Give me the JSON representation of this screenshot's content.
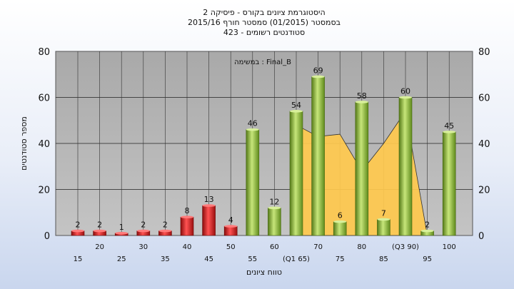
{
  "chart_data": {
    "type": "bar",
    "title_lines": [
      "היסטוגרמת ציונים בקורס - פיסיקה 2",
      "בסמסטר  (01/2015)  סמסטר חורף  2015/16",
      "סטודנטים רשומים - 423"
    ],
    "xlabel": "טווח ציונים",
    "ylabel": "מספר סטודנטים",
    "legend": "במשימה : Final_B",
    "ylim": [
      0,
      80
    ],
    "yticks": [
      0,
      20,
      40,
      60,
      80
    ],
    "categories": [
      "15",
      "20",
      "25",
      "30",
      "35",
      "40",
      "45",
      "50",
      "55",
      "60",
      "(Q1 65)",
      "70",
      "75",
      "80",
      "85",
      "(Q3 90)",
      "95",
      "100"
    ],
    "values": [
      2,
      2,
      1,
      2,
      2,
      8,
      13,
      4,
      46,
      12,
      54,
      69,
      6,
      58,
      7,
      60,
      2,
      45
    ],
    "bar_colors": [
      "red",
      "red",
      "red",
      "red",
      "red",
      "red",
      "red",
      "red",
      "green",
      "green",
      "green",
      "green",
      "green",
      "green",
      "green",
      "green",
      "green",
      "green"
    ],
    "colors": {
      "red_bar": "#e02020",
      "green_bar": "#9cc944",
      "area": "#ffc94d",
      "plot_bg": "#b5b5b5"
    },
    "area_series": [
      {
        "x": "(Q1 65)",
        "y": 48
      },
      {
        "x": "70",
        "y": 43
      },
      {
        "x": "75",
        "y": 44
      },
      {
        "x": "80",
        "y": 28
      },
      {
        "x": "85",
        "y": 40
      },
      {
        "x": "(Q3 90)",
        "y": 54
      },
      {
        "x": "95",
        "y": 0
      }
    ],
    "grid": true
  }
}
